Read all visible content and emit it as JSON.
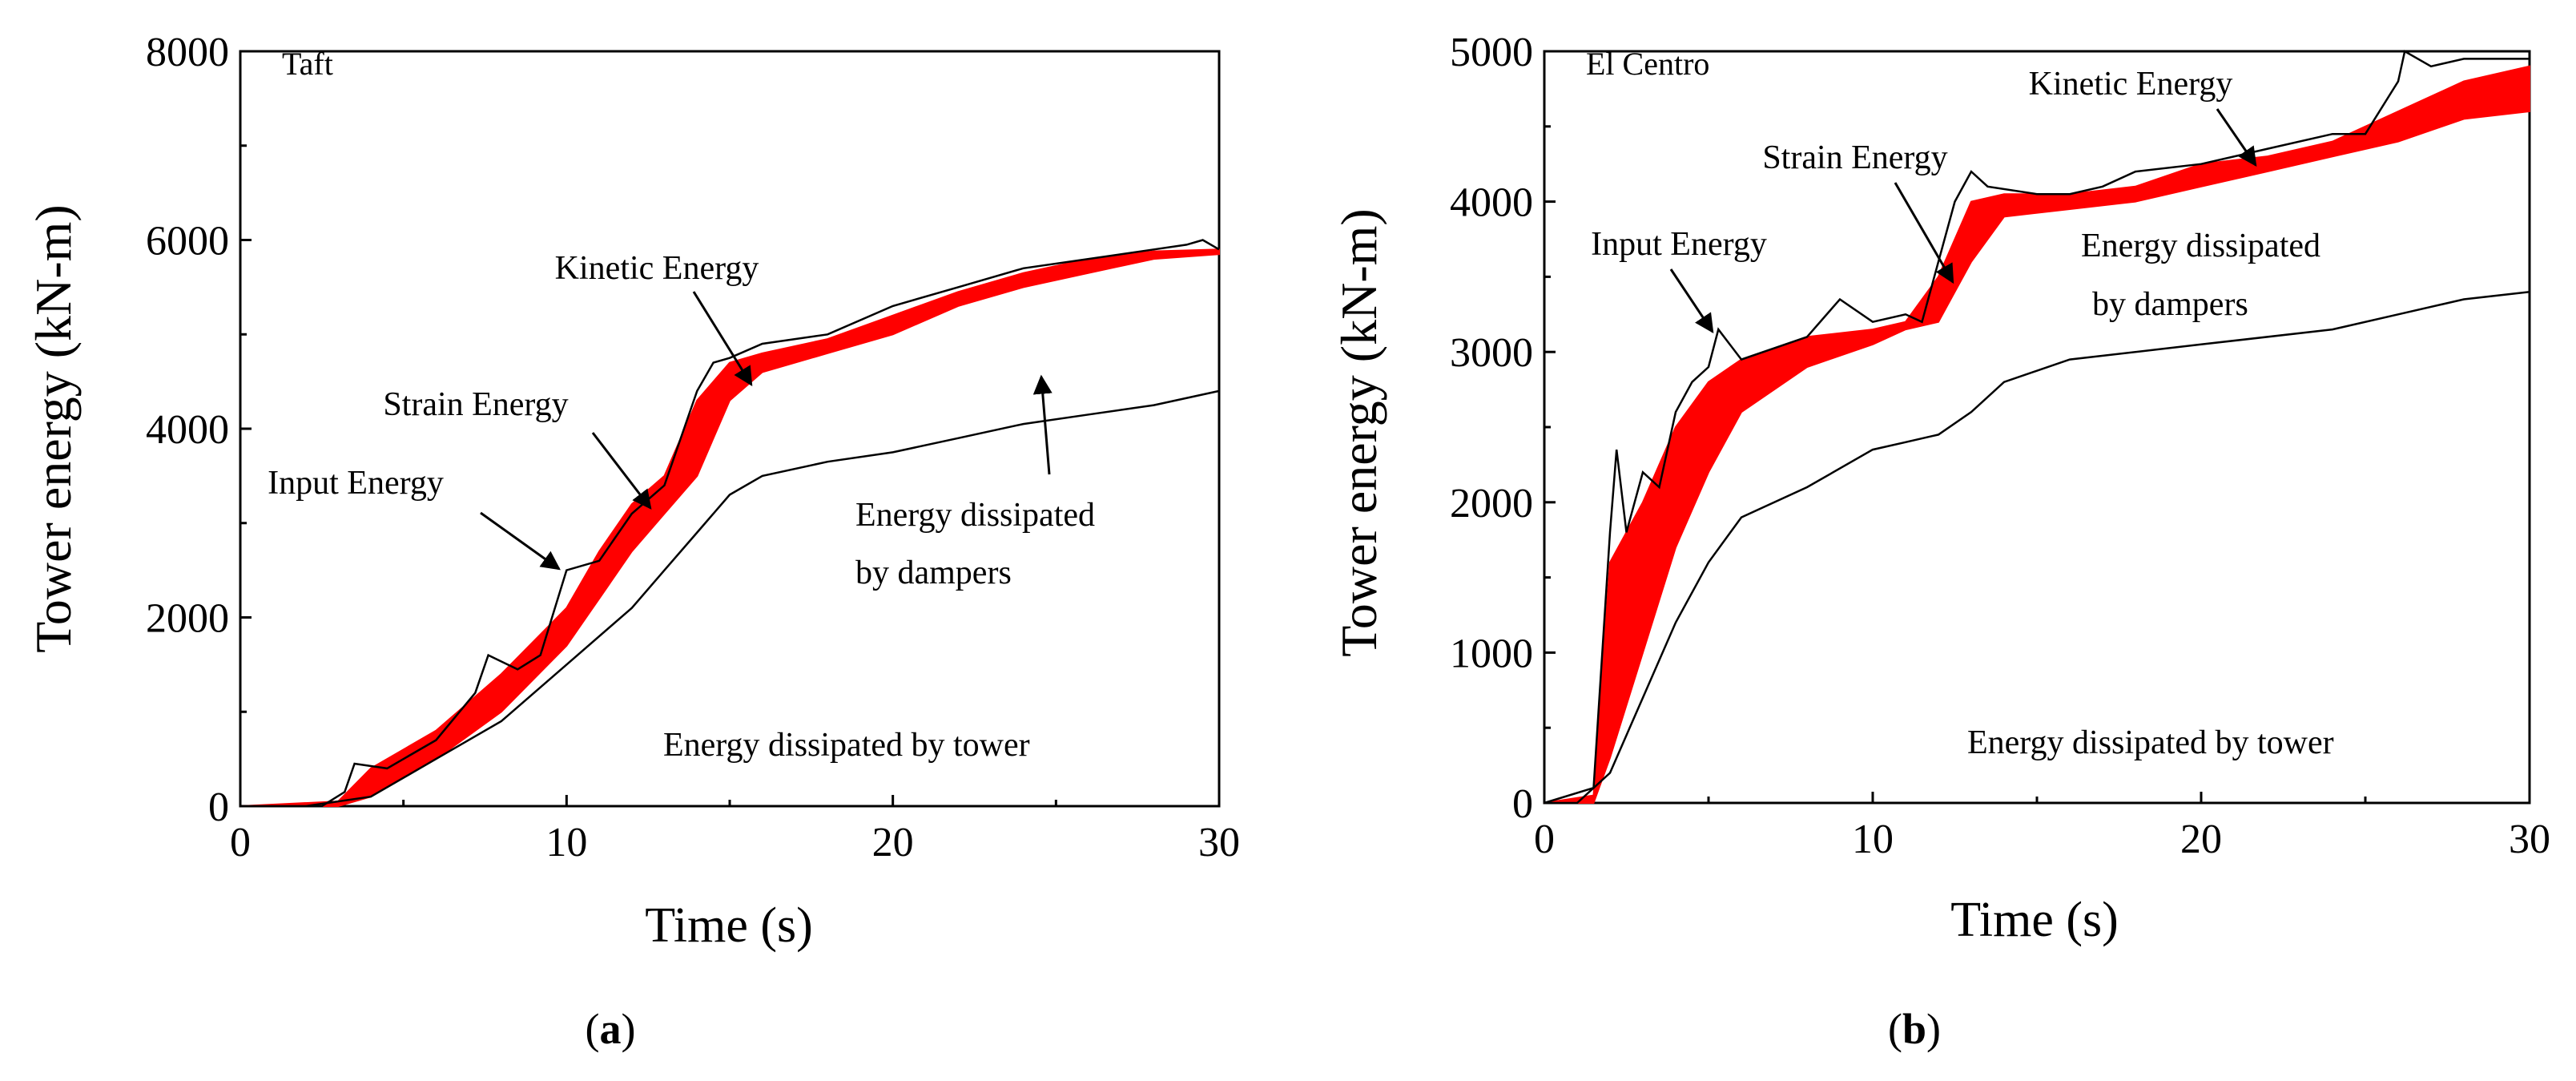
{
  "figure": {
    "panels": [
      "a",
      "b"
    ]
  },
  "chart_data": [
    {
      "type": "line",
      "panel_label": "a",
      "record_label": "Taft",
      "xlabel": "Time (s)",
      "ylabel": "Tower energy (kN-m)",
      "xlim": [
        0,
        30
      ],
      "ylim": [
        0,
        8000
      ],
      "xticks": [
        0,
        10,
        20,
        30
      ],
      "yticks": [
        0,
        2000,
        4000,
        6000,
        8000
      ],
      "series": [
        {
          "name": "Input Energy",
          "color": "#000000",
          "x": [
            0,
            2.5,
            3.2,
            3.5,
            4.5,
            6,
            7.2,
            7.6,
            8.5,
            9.2,
            10,
            11,
            12,
            13,
            14,
            14.5,
            15,
            16,
            18,
            20,
            22,
            24,
            26,
            28,
            29,
            29.5,
            30
          ],
          "y": [
            0,
            0,
            150,
            450,
            400,
            700,
            1200,
            1600,
            1450,
            1600,
            2500,
            2600,
            3100,
            3400,
            4400,
            4700,
            4750,
            4900,
            5000,
            5300,
            5500,
            5700,
            5800,
            5900,
            5950,
            6000,
            5900
          ]
        },
        {
          "name": "Energy dissipated by dampers",
          "color": "#000000",
          "x": [
            0,
            2,
            4,
            6,
            8,
            10,
            12,
            13,
            14,
            15,
            16,
            18,
            20,
            22,
            24,
            26,
            28,
            30
          ],
          "y": [
            0,
            0,
            100,
            500,
            900,
            1500,
            2100,
            2500,
            2900,
            3300,
            3500,
            3650,
            3750,
            3900,
            4050,
            4150,
            4250,
            4400
          ]
        }
      ],
      "band": {
        "name": "Kinetic Energy / Strain Energy",
        "color": "#ff0000",
        "x": [
          0,
          3,
          4,
          6,
          8,
          10,
          11,
          12,
          13,
          14,
          15,
          16,
          18,
          20,
          22,
          24,
          26,
          28,
          30
        ],
        "lower": [
          0,
          0,
          100,
          500,
          1000,
          1700,
          2200,
          2700,
          3100,
          3500,
          4300,
          4600,
          4800,
          5000,
          5300,
          5500,
          5650,
          5800,
          5850
        ],
        "upper": [
          0,
          50,
          400,
          800,
          1400,
          2100,
          2700,
          3200,
          3500,
          4300,
          4700,
          4800,
          4950,
          5200,
          5450,
          5650,
          5800,
          5880,
          5900
        ]
      },
      "annotations": [
        {
          "text": "Kinetic Energy",
          "arrow_to": [
            15.5,
            4600
          ]
        },
        {
          "text": "Strain Energy",
          "arrow_to": [
            12.6,
            3200
          ]
        },
        {
          "text": "Input Energy",
          "arrow_to": [
            10,
            2500
          ]
        },
        {
          "text": "Energy dissipated",
          "text2": "by dampers",
          "arrow_to": [
            24.5,
            4600
          ]
        },
        {
          "text": "Energy dissipated by tower"
        }
      ]
    },
    {
      "type": "line",
      "panel_label": "b",
      "record_label": "El Centro",
      "xlabel": "Time (s)",
      "ylabel": "Tower energy (kN-m)",
      "xlim": [
        0,
        30
      ],
      "ylim": [
        0,
        5000
      ],
      "xticks": [
        0,
        10,
        20,
        30
      ],
      "yticks": [
        0,
        1000,
        2000,
        3000,
        4000,
        5000
      ],
      "series": [
        {
          "name": "Input Energy",
          "color": "#000000",
          "x": [
            0,
            1.5,
            2.0,
            2.2,
            2.5,
            3,
            3.5,
            4,
            4.5,
            5,
            5.3,
            6,
            8,
            9,
            10,
            11,
            11.5,
            12,
            12.5,
            13,
            13.5,
            15,
            16,
            17,
            18,
            20,
            22,
            24,
            25,
            26,
            26.2,
            27,
            28,
            29,
            30
          ],
          "y": [
            0,
            100,
            1800,
            2350,
            1800,
            2200,
            2100,
            2600,
            2800,
            2900,
            3150,
            2950,
            3100,
            3350,
            3200,
            3250,
            3200,
            3600,
            4000,
            4200,
            4100,
            4050,
            4050,
            4100,
            4200,
            4250,
            4350,
            4450,
            4450,
            4800,
            5000,
            4900,
            4950,
            4950,
            4950
          ]
        },
        {
          "name": "Energy dissipated by dampers",
          "color": "#000000",
          "x": [
            0,
            1,
            2,
            3,
            4,
            5,
            6,
            8,
            10,
            11,
            12,
            13,
            14,
            16,
            20,
            24,
            26,
            28,
            30
          ],
          "y": [
            0,
            0,
            200,
            700,
            1200,
            1600,
            1900,
            2100,
            2350,
            2400,
            2450,
            2600,
            2800,
            2950,
            3050,
            3150,
            3250,
            3350,
            3400
          ]
        }
      ],
      "band": {
        "name": "Kinetic Energy / Strain Energy",
        "color": "#ff0000",
        "x": [
          0,
          1.5,
          2,
          3,
          4,
          5,
          6,
          8,
          10,
          11,
          12,
          13,
          14,
          16,
          18,
          20,
          22,
          24,
          26,
          28,
          30
        ],
        "lower": [
          0,
          0,
          300,
          1000,
          1700,
          2200,
          2600,
          2900,
          3050,
          3150,
          3200,
          3600,
          3900,
          3950,
          4000,
          4100,
          4200,
          4300,
          4400,
          4550,
          4600
        ],
        "upper": [
          0,
          50,
          1600,
          2000,
          2500,
          2800,
          2950,
          3100,
          3150,
          3200,
          3500,
          4000,
          4050,
          4050,
          4100,
          4250,
          4300,
          4400,
          4600,
          4800,
          4900
        ]
      },
      "annotations": [
        {
          "text": "Kinetic Energy",
          "arrow_to": [
            22.3,
            4250
          ]
        },
        {
          "text": "Strain Energy",
          "arrow_to": [
            12.6,
            3400
          ]
        },
        {
          "text": "Input Energy",
          "arrow_to": [
            5.4,
            3150
          ]
        },
        {
          "text": "Energy dissipated",
          "text2": "by dampers"
        },
        {
          "text": "Energy dissipated by tower"
        }
      ]
    }
  ]
}
